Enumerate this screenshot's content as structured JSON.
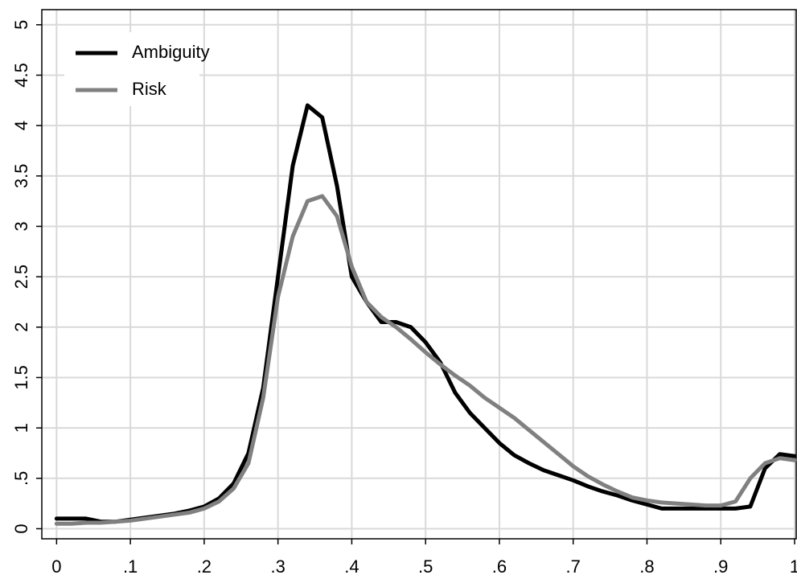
{
  "chart_data": {
    "type": "line",
    "x": [
      0,
      0.02,
      0.04,
      0.06,
      0.08,
      0.1,
      0.12,
      0.14,
      0.16,
      0.18,
      0.2,
      0.22,
      0.24,
      0.26,
      0.28,
      0.3,
      0.32,
      0.34,
      0.36,
      0.38,
      0.4,
      0.42,
      0.44,
      0.46,
      0.48,
      0.5,
      0.52,
      0.54,
      0.56,
      0.58,
      0.6,
      0.62,
      0.64,
      0.66,
      0.68,
      0.7,
      0.72,
      0.74,
      0.76,
      0.78,
      0.8,
      0.82,
      0.84,
      0.86,
      0.88,
      0.9,
      0.92,
      0.94,
      0.96,
      0.98,
      1
    ],
    "series": [
      {
        "name": "Ambiguity",
        "color": "#000000",
        "values": [
          0.1,
          0.1,
          0.1,
          0.07,
          0.07,
          0.09,
          0.11,
          0.13,
          0.15,
          0.18,
          0.22,
          0.3,
          0.45,
          0.75,
          1.4,
          2.5,
          3.6,
          4.2,
          4.08,
          3.4,
          2.5,
          2.25,
          2.05,
          2.05,
          2.0,
          1.85,
          1.65,
          1.35,
          1.15,
          1.0,
          0.85,
          0.73,
          0.65,
          0.58,
          0.53,
          0.48,
          0.42,
          0.37,
          0.33,
          0.28,
          0.24,
          0.2,
          0.2,
          0.2,
          0.2,
          0.2,
          0.2,
          0.22,
          0.6,
          0.74,
          0.72
        ]
      },
      {
        "name": "Risk",
        "color": "#808080",
        "values": [
          0.05,
          0.05,
          0.06,
          0.06,
          0.07,
          0.08,
          0.1,
          0.12,
          0.14,
          0.16,
          0.2,
          0.27,
          0.4,
          0.65,
          1.3,
          2.3,
          2.9,
          3.25,
          3.3,
          3.1,
          2.6,
          2.25,
          2.1,
          2.0,
          1.88,
          1.75,
          1.63,
          1.52,
          1.42,
          1.3,
          1.2,
          1.1,
          0.98,
          0.86,
          0.74,
          0.62,
          0.52,
          0.44,
          0.37,
          0.31,
          0.28,
          0.26,
          0.25,
          0.24,
          0.23,
          0.23,
          0.27,
          0.5,
          0.65,
          0.7,
          0.68
        ]
      }
    ],
    "xlim": [
      -0.02,
      1
    ],
    "ylim": [
      -0.1,
      5.15
    ],
    "xticks": [
      0,
      {
        "value": 0.1,
        "label": ".1"
      },
      {
        "value": 0.2,
        "label": ".2"
      },
      {
        "value": 0.3,
        "label": ".3"
      },
      {
        "value": 0.4,
        "label": ".4"
      },
      {
        "value": 0.5,
        "label": ".5"
      },
      {
        "value": 0.6,
        "label": ".6"
      },
      {
        "value": 0.7,
        "label": ".7"
      },
      {
        "value": 0.8,
        "label": ".8"
      },
      {
        "value": 0.9,
        "label": ".9"
      },
      1
    ],
    "yticks": [
      0,
      {
        "value": 0.5,
        "label": ".5"
      },
      1,
      1.5,
      2,
      2.5,
      3,
      3.5,
      4,
      4.5,
      5
    ],
    "grid": true,
    "legend": "upper-left"
  }
}
